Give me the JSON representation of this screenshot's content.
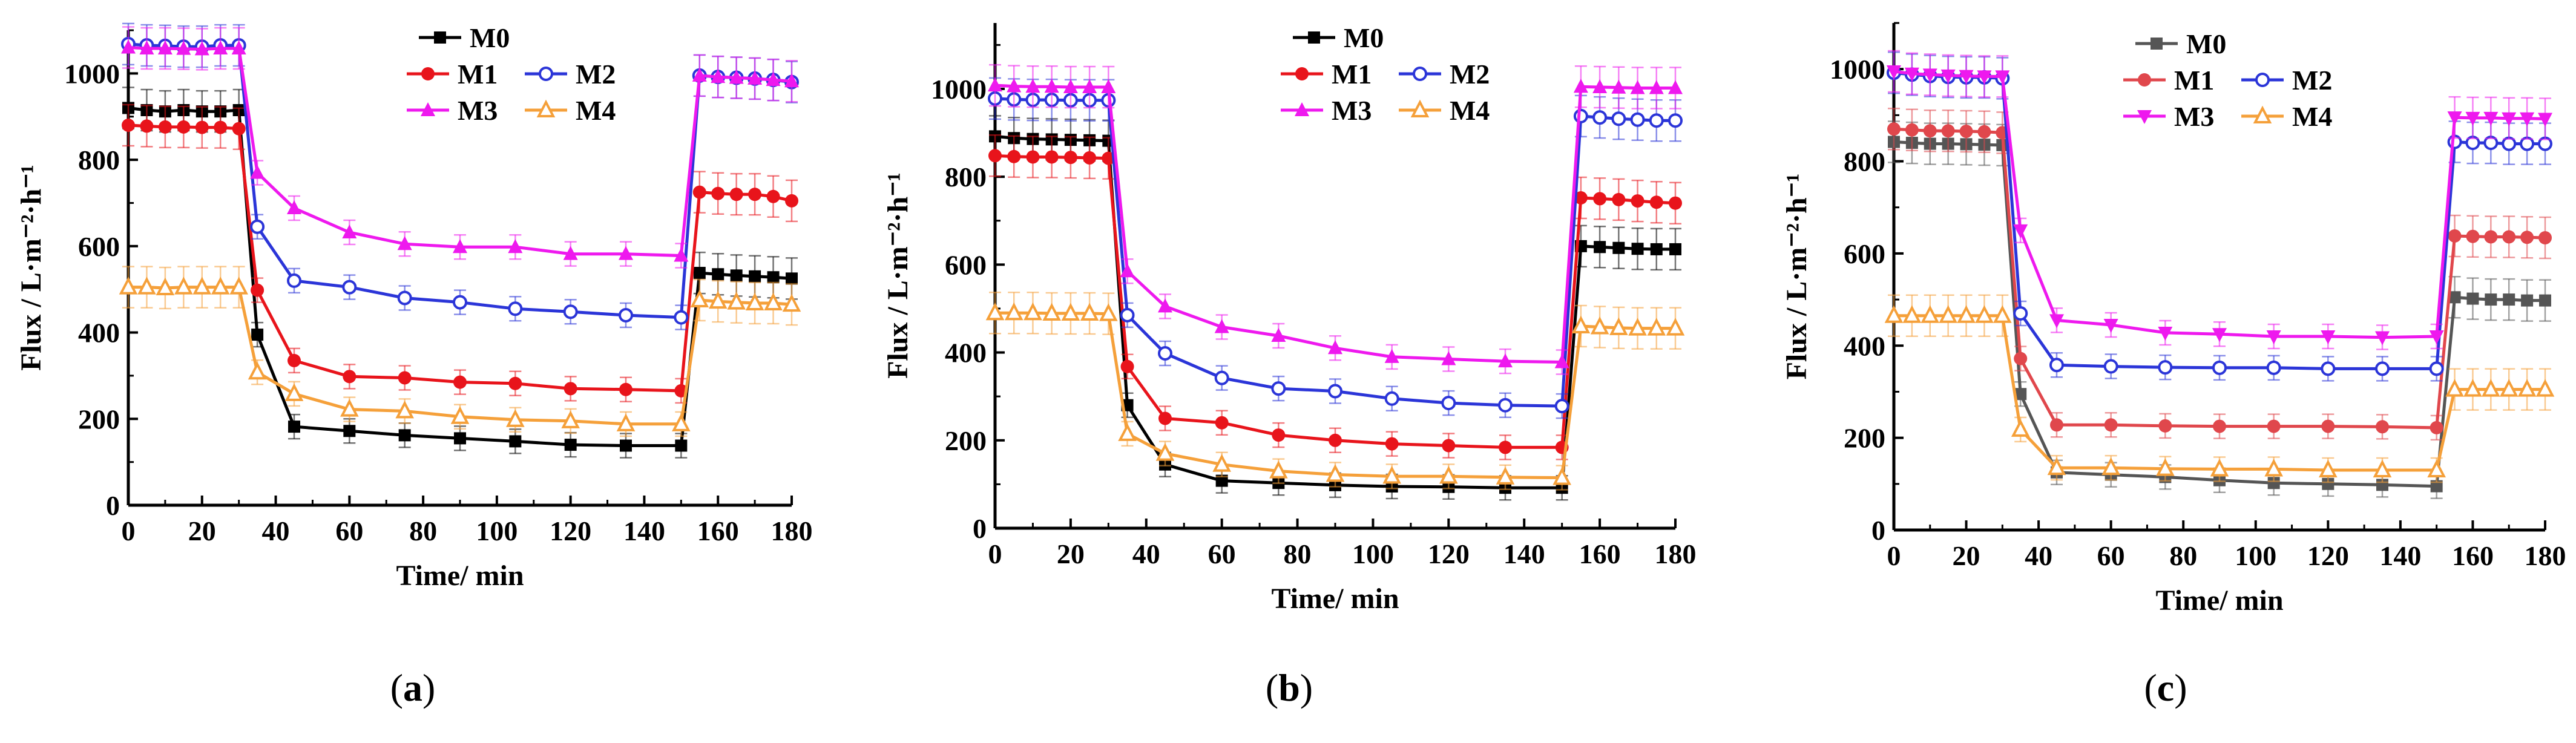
{
  "figure": {
    "panels": [
      {
        "id": "a",
        "caption_open": "(",
        "caption_letter": "a",
        "caption_close": ")"
      },
      {
        "id": "b",
        "caption_open": "(",
        "caption_letter": "b",
        "caption_close": ")"
      },
      {
        "id": "c",
        "caption_open": "(",
        "caption_letter": "c",
        "caption_close": ")"
      }
    ]
  },
  "chart_data": [
    {
      "type": "line",
      "panel": "a",
      "xlabel": "Time/ min",
      "ylabel": "Flux / L·m⁻²·h⁻¹",
      "xlim": [
        0,
        180
      ],
      "ylim": [
        0,
        1100
      ],
      "xticks": [
        0,
        20,
        40,
        60,
        80,
        100,
        120,
        140,
        160,
        180
      ],
      "yticks": [
        0,
        200,
        400,
        600,
        800,
        1000
      ],
      "grid": false,
      "legend_placement": "top-center",
      "x": [
        0,
        5,
        10,
        15,
        20,
        25,
        30,
        35,
        45,
        60,
        75,
        90,
        105,
        120,
        135,
        150,
        155,
        160,
        165,
        170,
        175,
        180
      ],
      "series": [
        {
          "name": "M0",
          "color": "#000000",
          "marker": "square",
          "values": [
            920,
            915,
            912,
            915,
            912,
            912,
            915,
            395,
            182,
            172,
            162,
            155,
            148,
            140,
            138,
            138,
            538,
            535,
            532,
            530,
            528,
            525
          ]
        },
        {
          "name": "M1",
          "color": "#e8141b",
          "marker": "circle",
          "values": [
            880,
            878,
            876,
            876,
            875,
            875,
            872,
            498,
            335,
            298,
            295,
            285,
            282,
            270,
            268,
            265,
            725,
            722,
            720,
            720,
            715,
            705
          ]
        },
        {
          "name": "M2",
          "color": "#2b35d8",
          "marker": "circle-open",
          "values": [
            1068,
            1065,
            1064,
            1062,
            1062,
            1065,
            1065,
            645,
            520,
            505,
            480,
            470,
            455,
            448,
            440,
            435,
            995,
            992,
            990,
            988,
            985,
            980
          ]
        },
        {
          "name": "M3",
          "color": "#ee19ee",
          "marker": "triangle-up",
          "values": [
            1060,
            1058,
            1058,
            1057,
            1056,
            1058,
            1058,
            770,
            688,
            632,
            605,
            598,
            598,
            582,
            582,
            578,
            995,
            992,
            990,
            988,
            985,
            982
          ]
        },
        {
          "name": "M4",
          "color": "#f5a03a",
          "marker": "triangle-open",
          "values": [
            505,
            505,
            503,
            505,
            505,
            505,
            505,
            308,
            258,
            222,
            218,
            205,
            198,
            195,
            188,
            188,
            475,
            472,
            470,
            468,
            468,
            465
          ]
        }
      ]
    },
    {
      "type": "line",
      "panel": "b",
      "xlabel": "Time/ min",
      "ylabel": "Flux / L·m⁻²·h⁻¹",
      "xlim": [
        0,
        180
      ],
      "ylim": [
        0,
        1150
      ],
      "xticks": [
        0,
        20,
        40,
        60,
        80,
        100,
        120,
        140,
        160,
        180
      ],
      "yticks": [
        0,
        200,
        400,
        600,
        800,
        1000
      ],
      "grid": false,
      "legend_placement": "top-center",
      "x": [
        0,
        5,
        10,
        15,
        20,
        25,
        30,
        35,
        45,
        60,
        75,
        90,
        105,
        120,
        135,
        150,
        155,
        160,
        165,
        170,
        175,
        180
      ],
      "series": [
        {
          "name": "M0",
          "color": "#000000",
          "marker": "square",
          "values": [
            892,
            888,
            886,
            885,
            884,
            883,
            882,
            280,
            145,
            108,
            103,
            98,
            95,
            94,
            92,
            92,
            642,
            640,
            638,
            636,
            635,
            635
          ]
        },
        {
          "name": "M1",
          "color": "#e8141b",
          "marker": "circle",
          "values": [
            848,
            846,
            845,
            845,
            844,
            843,
            842,
            368,
            250,
            240,
            212,
            200,
            192,
            188,
            184,
            184,
            752,
            750,
            748,
            745,
            742,
            740
          ]
        },
        {
          "name": "M2",
          "color": "#2b35d8",
          "marker": "circle-open",
          "values": [
            978,
            976,
            975,
            975,
            974,
            974,
            974,
            485,
            398,
            342,
            318,
            312,
            295,
            285,
            280,
            278,
            938,
            935,
            932,
            930,
            928,
            928
          ]
        },
        {
          "name": "M3",
          "color": "#ee19ee",
          "marker": "triangle-up",
          "values": [
            1008,
            1006,
            1005,
            1005,
            1004,
            1004,
            1004,
            585,
            505,
            458,
            438,
            410,
            390,
            385,
            380,
            378,
            1005,
            1004,
            1003,
            1002,
            1002,
            1002
          ]
        },
        {
          "name": "M4",
          "color": "#f5a03a",
          "marker": "triangle-open",
          "values": [
            490,
            490,
            490,
            489,
            489,
            489,
            488,
            215,
            170,
            145,
            130,
            122,
            118,
            118,
            116,
            115,
            460,
            458,
            456,
            455,
            455,
            455
          ]
        }
      ]
    },
    {
      "type": "line",
      "panel": "c",
      "xlabel": "Time/ min",
      "ylabel": "Flux / L·m⁻²·h⁻¹",
      "xlim": [
        0,
        180
      ],
      "ylim": [
        0,
        1100
      ],
      "xticks": [
        0,
        20,
        40,
        60,
        80,
        100,
        120,
        140,
        160,
        180
      ],
      "yticks": [
        0,
        200,
        400,
        600,
        800,
        1000
      ],
      "grid": false,
      "legend_placement": "top-center",
      "x": [
        0,
        5,
        10,
        15,
        20,
        25,
        30,
        35,
        45,
        60,
        75,
        90,
        105,
        120,
        135,
        150,
        155,
        160,
        165,
        170,
        175,
        180
      ],
      "series": [
        {
          "name": "M0",
          "color": "#555555",
          "marker": "square",
          "values": [
            842,
            840,
            838,
            838,
            837,
            836,
            835,
            295,
            125,
            120,
            115,
            108,
            102,
            100,
            98,
            95,
            505,
            502,
            500,
            500,
            498,
            498
          ]
        },
        {
          "name": "M1",
          "color": "#e0474c",
          "marker": "circle",
          "values": [
            870,
            868,
            866,
            866,
            865,
            864,
            862,
            372,
            228,
            228,
            226,
            225,
            225,
            225,
            224,
            222,
            638,
            637,
            636,
            636,
            635,
            634
          ]
        },
        {
          "name": "M2",
          "color": "#2b35d8",
          "marker": "circle-open",
          "values": [
            992,
            988,
            985,
            983,
            982,
            982,
            980,
            470,
            358,
            355,
            353,
            352,
            352,
            350,
            350,
            350,
            842,
            840,
            840,
            838,
            838,
            838
          ]
        },
        {
          "name": "M3",
          "color": "#ee19ee",
          "marker": "triangle-down",
          "values": [
            995,
            990,
            988,
            986,
            985,
            984,
            984,
            650,
            455,
            445,
            428,
            425,
            420,
            420,
            418,
            420,
            895,
            894,
            894,
            893,
            893,
            892
          ]
        },
        {
          "name": "M4",
          "color": "#f5a03a",
          "marker": "triangle-open",
          "values": [
            465,
            465,
            465,
            465,
            465,
            465,
            465,
            218,
            135,
            135,
            133,
            132,
            132,
            130,
            130,
            130,
            305,
            305,
            305,
            305,
            305,
            305
          ]
        }
      ]
    }
  ]
}
